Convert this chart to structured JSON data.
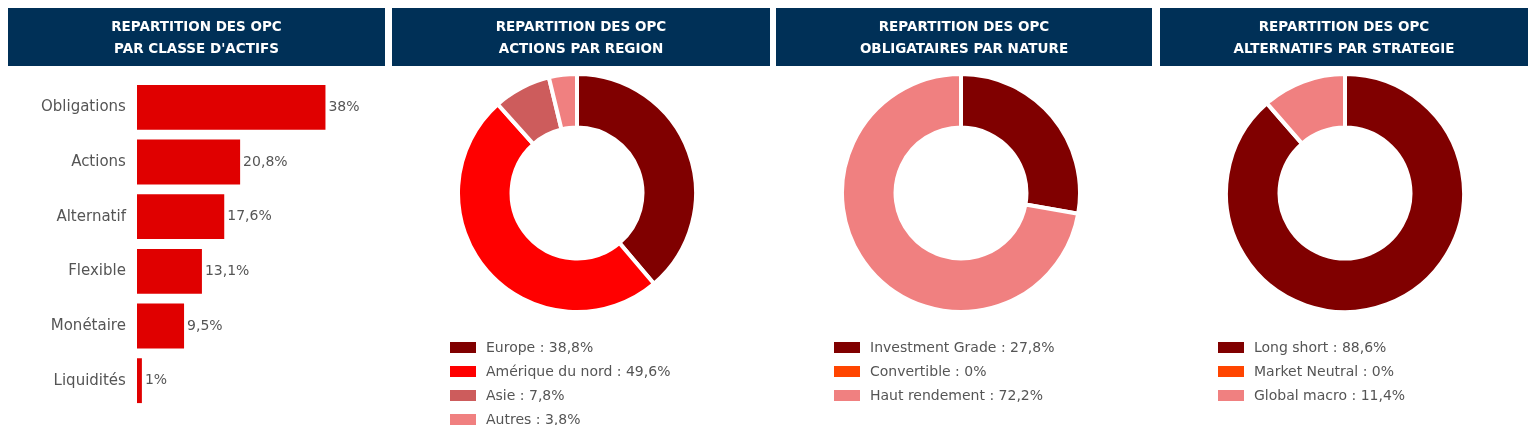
{
  "chart_data": [
    {
      "type": "bar",
      "title": "REPARTITION DES OPC\nPAR CLASSE D'ACTIFS",
      "orientation": "horizontal",
      "categories": [
        "Obligations",
        "Actions",
        "Alternatif",
        "Flexible",
        "Monétaire",
        "Liquidités"
      ],
      "values": [
        38,
        20.8,
        17.6,
        13.1,
        9.5,
        1
      ],
      "value_labels": [
        "38%",
        "20,8%",
        "17,6%",
        "13,1%",
        "9,5%",
        "1%"
      ],
      "color": "#e00000",
      "tick_labels": "y",
      "legend": false
    },
    {
      "type": "donut",
      "title": "REPARTITION DES OPC\nACTIONS PAR REGION",
      "categories": [
        "Europe : 38,8%",
        "Amérique du nord : 49,6%",
        "Asie : 7,8%",
        "Autres : 3,8%"
      ],
      "values": [
        38.8,
        49.6,
        7.8,
        3.8
      ],
      "colors": [
        "#800000",
        "#ff0000",
        "#cd5c5c",
        "#f08080"
      ],
      "legend": "bottom"
    },
    {
      "type": "donut",
      "title": "REPARTITION DES OPC\nOBLIGATAIRES PAR NATURE",
      "categories": [
        "Investment Grade : 27,8%",
        "Convertible : 0%",
        "Haut rendement : 72,2%"
      ],
      "values": [
        27.8,
        0,
        72.2
      ],
      "colors": [
        "#800000",
        "#ff4500",
        "#f08080"
      ],
      "legend": "bottom"
    },
    {
      "type": "donut",
      "title": "REPARTITION DES OPC\nALTERNATIFS PAR STRATEGIE",
      "categories": [
        "Long short : 88,6%",
        "Market Neutral : 0%",
        "Global macro : 11,4%"
      ],
      "values": [
        88.6,
        0,
        11.4
      ],
      "colors": [
        "#800000",
        "#ff4500",
        "#f08080"
      ],
      "legend": "bottom"
    }
  ]
}
